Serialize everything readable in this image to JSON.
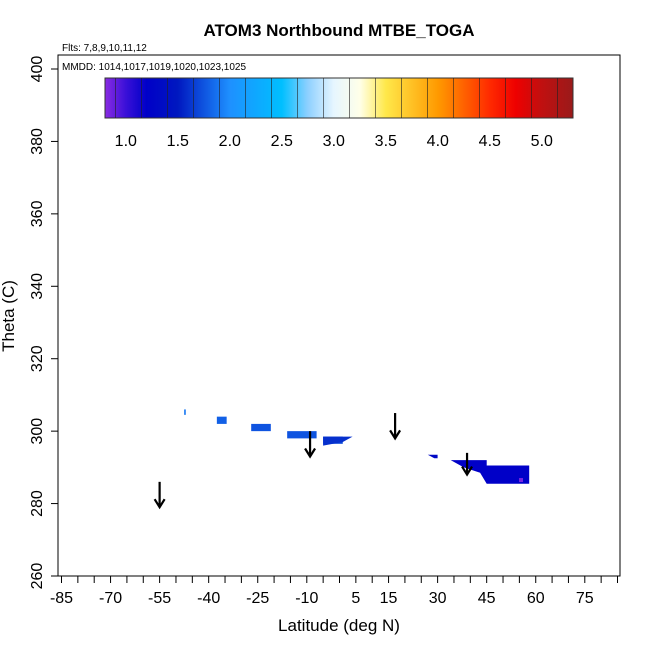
{
  "chart_data": {
    "type": "heatmap",
    "title": "ATOM3 Northbound MTBE_TOGA",
    "flights_label": "Flts: 7,8,9,10,11,12",
    "dates_label": "MMDD: 1014,1017,1019,1020,1023,1025",
    "xlabel": "Latitude (deg N)",
    "ylabel": "Theta (C)",
    "xlim": [
      -85,
      85
    ],
    "ylim": [
      260,
      400
    ],
    "x_ticks": [
      -85,
      -70,
      -55,
      -40,
      -25,
      -10,
      5,
      15,
      30,
      45,
      60,
      75
    ],
    "x_tick_labels": [
      "-85",
      "-70",
      "-55",
      "-40",
      "-25",
      "-10",
      "5",
      "15",
      "30",
      "45",
      "60",
      "75"
    ],
    "x_minor_step": 5,
    "y_ticks": [
      260,
      280,
      300,
      320,
      340,
      360,
      380,
      400
    ],
    "y_tick_labels": [
      "260",
      "280",
      "300",
      "320",
      "340",
      "360",
      "380",
      "400"
    ],
    "colorbar": {
      "range": [
        0.8,
        5.3
      ],
      "ticks": [
        1.0,
        1.5,
        2.0,
        2.5,
        3.0,
        3.5,
        4.0,
        4.5,
        5.0
      ],
      "tick_labels": [
        "1.0",
        "1.5",
        "2.0",
        "2.5",
        "3.0",
        "3.5",
        "4.0",
        "4.5",
        "5.0"
      ],
      "stops": [
        {
          "v": 0.8,
          "c": "#8a2be2"
        },
        {
          "v": 1.0,
          "c": "#3a10d8"
        },
        {
          "v": 1.2,
          "c": "#0000c8"
        },
        {
          "v": 1.5,
          "c": "#0018c0"
        },
        {
          "v": 2.0,
          "c": "#1e90ff"
        },
        {
          "v": 2.5,
          "c": "#00bfff"
        },
        {
          "v": 2.75,
          "c": "#8ed0ff"
        },
        {
          "v": 3.0,
          "c": "#e6f6ff"
        },
        {
          "v": 3.25,
          "c": "#ffffe8"
        },
        {
          "v": 3.5,
          "c": "#ffe84a"
        },
        {
          "v": 4.0,
          "c": "#ff9a00"
        },
        {
          "v": 4.5,
          "c": "#ff2a00"
        },
        {
          "v": 4.75,
          "c": "#ee0000"
        },
        {
          "v": 5.0,
          "c": "#c01010"
        },
        {
          "v": 5.3,
          "c": "#9a1a1a"
        }
      ]
    },
    "cells": [
      {
        "lat0": -47.5,
        "lat1": -47.0,
        "th0": 304.5,
        "th1": 306.0,
        "value": 1.9
      },
      {
        "lat0": -37.5,
        "lat1": -34.5,
        "th0": 302.0,
        "th1": 304.0,
        "value": 1.8
      },
      {
        "lat0": -27.0,
        "lat1": -21.0,
        "th0": 300.0,
        "th1": 302.0,
        "value": 1.75
      },
      {
        "lat0": -16.0,
        "lat1": -7.0,
        "th0": 298.0,
        "th1": 300.0,
        "value": 1.75
      },
      {
        "lat0": -5.0,
        "lat1": 1.0,
        "th0": 296.5,
        "th1": 298.5,
        "value": 1.7
      }
    ],
    "polygons": [
      {
        "value": 1.6,
        "points": [
          [
            -5,
            298.5
          ],
          [
            4,
            298.5
          ],
          [
            1,
            297.0
          ],
          [
            -5,
            296.0
          ]
        ]
      },
      {
        "value": 1.3,
        "points": [
          [
            27,
            293.5
          ],
          [
            30,
            293.5
          ],
          [
            30,
            292.5
          ],
          [
            29,
            292.5
          ]
        ]
      },
      {
        "value": 1.2,
        "points": [
          [
            34,
            292.0
          ],
          [
            45,
            292.0
          ],
          [
            45,
            290.5
          ],
          [
            58,
            290.5
          ],
          [
            58,
            285.5
          ],
          [
            45,
            285.5
          ],
          [
            43,
            288.5
          ],
          [
            38,
            290.0
          ]
        ]
      }
    ],
    "points": [
      {
        "lat": 55.5,
        "theta": 286.5,
        "value": 0.85
      }
    ],
    "arrows": [
      {
        "lat": -55,
        "theta_top": 286,
        "theta_tip": 279
      },
      {
        "lat": -9,
        "theta_top": 300,
        "theta_tip": 293
      },
      {
        "lat": 17,
        "theta_top": 305,
        "theta_tip": 298
      },
      {
        "lat": 39,
        "theta_top": 294,
        "theta_tip": 288
      }
    ]
  }
}
